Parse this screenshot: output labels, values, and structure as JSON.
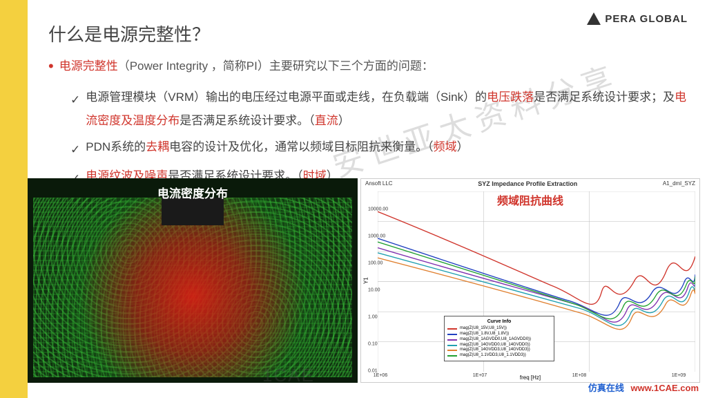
{
  "logo": {
    "text": "PERA GLOBAL"
  },
  "title": "什么是电源完整性？",
  "bullet": {
    "pre_red": "电源完整性",
    "rest": "（Power Integrity ，简称PI）主要研究以下三个方面的问题："
  },
  "sub1": {
    "p1": "电源管理模块（VRM）输出的电压经过电源平面或走线，在负载端（Sink）的",
    "r1": "电压跌落",
    "p2": "是否满足系统设计要求；及",
    "r2": "电流密度及温度分布",
    "p3": "是否满足系统设计要求。（",
    "r3": "直流",
    "p4": "）"
  },
  "sub2": {
    "p1": "PDN系统的",
    "r1": "去耦",
    "p2": "电容的设计及优化，通常以频域目标阻抗来衡量。（",
    "r2": "频域",
    "p3": "）"
  },
  "sub3": {
    "r1": "电源纹波及噪声",
    "p1": "是否满足系统设计要求。（",
    "r2": "时域",
    "p2": "）"
  },
  "watermark": "安世亚太资料分享",
  "watermark2": "1CAE",
  "left_img": {
    "label": "电流密度分布"
  },
  "right_chart": {
    "header_left": "Ansoft LLC",
    "header_center": "SYZ Impedance Profile Extraction",
    "header_right": "A1_dml_SYZ",
    "red_label": "频域阻抗曲线",
    "ylabel": "Y1",
    "xlabel": "freq [Hz]",
    "xlim": [
      1000000.0,
      1000000000.0
    ],
    "ylim": [
      0.01,
      10000
    ],
    "xticks": [
      "1E+06",
      "1E+07",
      "1E+08",
      "1E+09"
    ],
    "yticks": [
      "0.01",
      "0.10",
      "1.00",
      "10.00",
      "100.00",
      "1000.00",
      "10000.00"
    ],
    "grid_color": "#bbbbbb",
    "background_color": "#ffffff",
    "colors": {
      "red": "#d0352c",
      "blue": "#2040c0",
      "green": "#20a030",
      "purple": "#8030b0",
      "cyan": "#20a0b0",
      "orange": "#e08030"
    },
    "legend_title": "Curve Info",
    "legend_items": [
      {
        "color": "#d0352c",
        "label": "mag(Z(U8_15V,U8_15V))"
      },
      {
        "color": "#2040c0",
        "label": "mag(Z(U8_1.8V,U8_1.8V))"
      },
      {
        "color": "#8030b0",
        "label": "mag(Z(U8_1AGVDD0,U8_1AGVDD0))"
      },
      {
        "color": "#20a0b0",
        "label": "mag(Z(U8_14GVDD0,U8_14GVDD0))"
      },
      {
        "color": "#e08030",
        "label": "mag(Z(U8_14GVDD3,U8_14GVDD3))"
      },
      {
        "color": "#20a030",
        "label": "mag(Z(U8_1.1VDD3,U8_1.1VDD3))"
      }
    ]
  },
  "footer": {
    "cn": "仿真在线",
    "url": "www.1CAE.com"
  }
}
